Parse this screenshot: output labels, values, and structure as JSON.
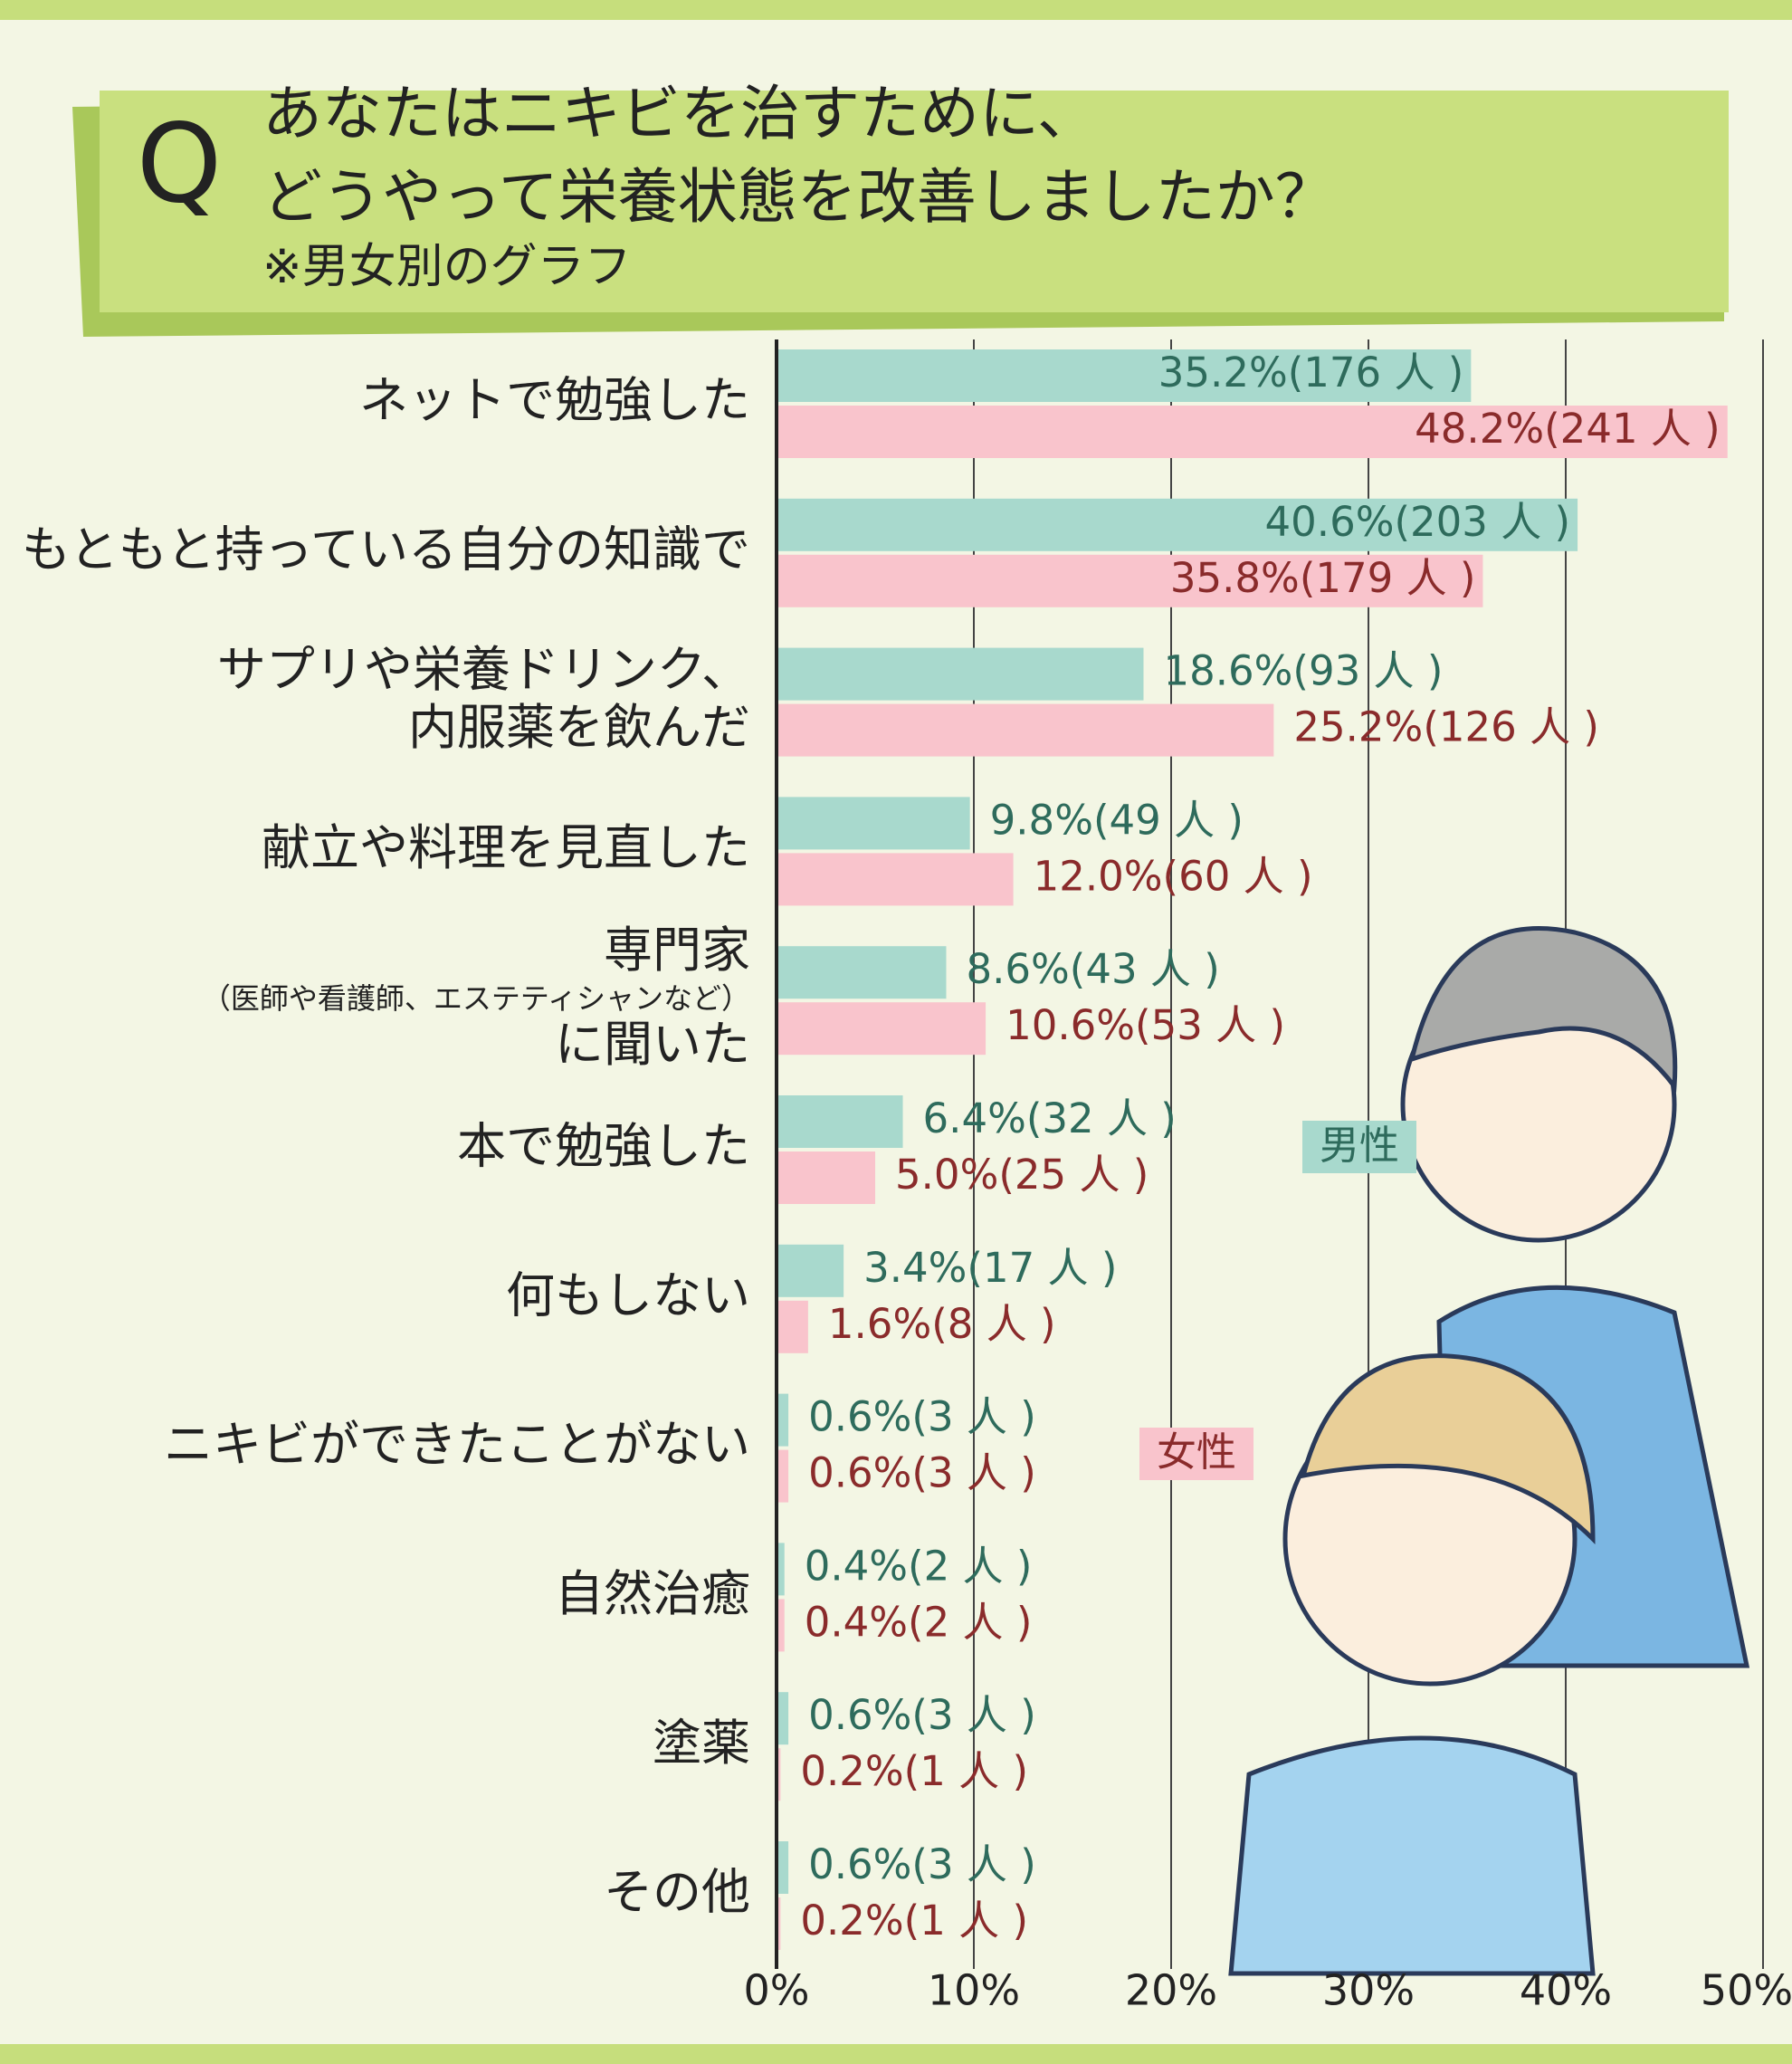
{
  "chart_data": {
    "type": "grouped-hbar",
    "mark": "Q",
    "title": [
      "あなたはニキビを治すために、",
      "どうやって栄養状態を改善しましたか？"
    ],
    "subtitle": "※男女別のグラフ",
    "categories": [
      [
        "ネットで勉強した"
      ],
      [
        "もともと持っている自分の知識で"
      ],
      [
        "サプリや栄養ドリンク、",
        "内服薬を飲んだ"
      ],
      [
        "献立や料理を見直した"
      ],
      [
        "専門家",
        "（医師や看護師、エステティシャンなど）",
        "に聞いた"
      ],
      [
        "本で勉強した"
      ],
      [
        "何もしない"
      ],
      [
        "ニキビができたことがない"
      ],
      [
        "自然治癒"
      ],
      [
        "塗薬"
      ],
      [
        "その他"
      ]
    ],
    "series": [
      {
        "name": "男性",
        "color": "#a8d9cd",
        "label_color": "#2e6b5c",
        "values": [
          35.2,
          40.6,
          18.6,
          9.8,
          8.6,
          6.4,
          3.4,
          0.6,
          0.4,
          0.6,
          0.6
        ],
        "value_labels": [
          "35.2%(176 人 )",
          "40.6%(203 人 )",
          "18.6%(93 人 )",
          "9.8%(49 人 )",
          "8.6%(43 人 )",
          "6.4%(32 人 )",
          "3.4%(17 人 )",
          "0.6%(3 人 )",
          "0.4%(2 人 )",
          "0.6%(3 人 )",
          "0.6%(3 人 )"
        ]
      },
      {
        "name": "女性",
        "color": "#f9c4cc",
        "label_color": "#8a2b2b",
        "values": [
          48.2,
          35.8,
          25.2,
          12.0,
          10.6,
          5.0,
          1.6,
          0.6,
          0.4,
          0.2,
          0.2
        ],
        "value_labels": [
          "48.2%(241 人 )",
          "35.8%(179 人 )",
          "25.2%(126 人 )",
          "12.0%(60 人 )",
          "10.6%(53 人 )",
          "5.0%(25 人 )",
          "1.6%(8 人 )",
          "0.6%(3 人 )",
          "0.4%(2 人 )",
          "0.2%(1 人 )",
          "0.2%(1 人 )"
        ]
      }
    ],
    "xlim": [
      0,
      50
    ],
    "xticks": [
      {
        "value": 0,
        "label": "0%"
      },
      {
        "value": 10,
        "label": "10%"
      },
      {
        "value": 20,
        "label": "20%"
      },
      {
        "value": 30,
        "label": "30%"
      },
      {
        "value": 40,
        "label": "40%"
      },
      {
        "value": 50,
        "label": "50%"
      }
    ],
    "grid": true
  }
}
